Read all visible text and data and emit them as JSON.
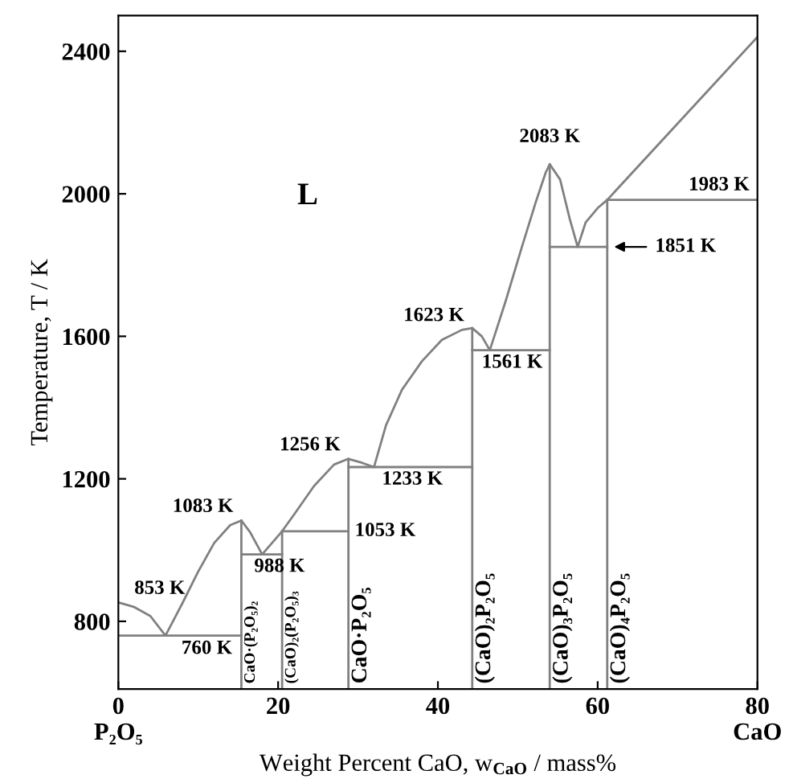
{
  "chart_data": {
    "type": "line",
    "xlabel": "Weight Percent CaO, w$_{CaO}$ / mass%",
    "ylabel": "Temperature, T / K",
    "xlim": [
      0,
      80
    ],
    "ylim": [
      610,
      2500
    ],
    "xticks": [
      {
        "value": 0,
        "label": "0\nP₂O₅"
      },
      20,
      40,
      60,
      {
        "value": 80,
        "label": "80\nCaO"
      }
    ],
    "yticks": [
      800,
      1200,
      1600,
      2000,
      2400
    ],
    "grid": false,
    "marker": "none",
    "line_style": "solid",
    "series": [
      {
        "color": "#808080",
        "x": [
          0,
          2,
          4,
          5.9,
          8,
          10,
          12,
          14,
          15.4,
          16.5,
          18,
          20.5,
          22,
          24.5,
          27,
          28.8,
          30.5,
          32,
          33.5,
          35.5,
          38,
          40.5,
          43,
          44.3,
          45.5,
          46.5,
          48.5,
          50.5,
          52.3,
          53.5,
          54,
          55.3,
          56.5,
          57.5,
          58.5,
          60,
          61.2,
          80
        ],
        "values": [
          853,
          840,
          815,
          760,
          850,
          940,
          1020,
          1070,
          1083,
          1050,
          988,
          1053,
          1100,
          1180,
          1240,
          1256,
          1245,
          1233,
          1350,
          1450,
          1530,
          1590,
          1618,
          1623,
          1600,
          1561,
          1700,
          1850,
          1980,
          2060,
          2083,
          2040,
          1930,
          1851,
          1920,
          1960,
          1983,
          2440
        ]
      },
      {
        "color": "#808080",
        "x": [
          0,
          15.4
        ],
        "values": [
          760,
          760
        ]
      },
      {
        "color": "#808080",
        "x": [
          15.4,
          20.5
        ],
        "values": [
          988,
          988
        ]
      },
      {
        "color": "#808080",
        "x": [
          20.5,
          28.8
        ],
        "values": [
          1053,
          1053
        ]
      },
      {
        "color": "#808080",
        "x": [
          28.8,
          44.3
        ],
        "values": [
          1233,
          1233
        ]
      },
      {
        "color": "#808080",
        "x": [
          44.3,
          54
        ],
        "values": [
          1561,
          1561
        ]
      },
      {
        "color": "#808080",
        "x": [
          54,
          61.2
        ],
        "values": [
          1851,
          1851
        ]
      },
      {
        "color": "#808080",
        "x": [
          61.2,
          80
        ],
        "values": [
          1983,
          1983
        ]
      },
      {
        "color": "#808080",
        "x": [
          15.4,
          15.4
        ],
        "values": [
          610,
          1083
        ]
      },
      {
        "color": "#808080",
        "x": [
          20.5,
          20.5
        ],
        "values": [
          610,
          1053
        ]
      },
      {
        "color": "#808080",
        "x": [
          28.8,
          28.8
        ],
        "values": [
          610,
          1256
        ]
      },
      {
        "color": "#808080",
        "x": [
          44.3,
          44.3
        ],
        "values": [
          610,
          1623
        ]
      },
      {
        "color": "#808080",
        "x": [
          54,
          54
        ],
        "values": [
          610,
          2083
        ]
      },
      {
        "color": "#808080",
        "x": [
          61.2,
          61.2
        ],
        "values": [
          610,
          1983
        ]
      }
    ],
    "annotations": [
      {
        "text": "853 K",
        "x": 0,
        "y": 853
      },
      {
        "text": "760 K",
        "x": 5.9,
        "y": 760
      },
      {
        "text": "1083 K",
        "x": 15.4,
        "y": 1083
      },
      {
        "text": "988 K",
        "x": 18,
        "y": 988
      },
      {
        "text": "1053 K",
        "x": 28.8,
        "y": 1053
      },
      {
        "text": "1256 K",
        "x": 28.8,
        "y": 1256
      },
      {
        "text": "1233 K",
        "x": 32,
        "y": 1233
      },
      {
        "text": "1623 K",
        "x": 44.3,
        "y": 1623
      },
      {
        "text": "1561 K",
        "x": 46.5,
        "y": 1561
      },
      {
        "text": "2083 K",
        "x": 54,
        "y": 2083
      },
      {
        "text": "1983 K",
        "x": 80,
        "y": 1983
      },
      {
        "text": "1851 K",
        "x": 61.2,
        "y": 1851
      },
      "L",
      "CaO·(P₂O₅)₂",
      "(CaO)₂(P₂O₅)₃",
      "CaO·P₂O₅",
      "(CaO)₂P₂O₅",
      "(CaO)₃P₂O₅",
      "(CaO)₄P₂O₅"
    ]
  }
}
